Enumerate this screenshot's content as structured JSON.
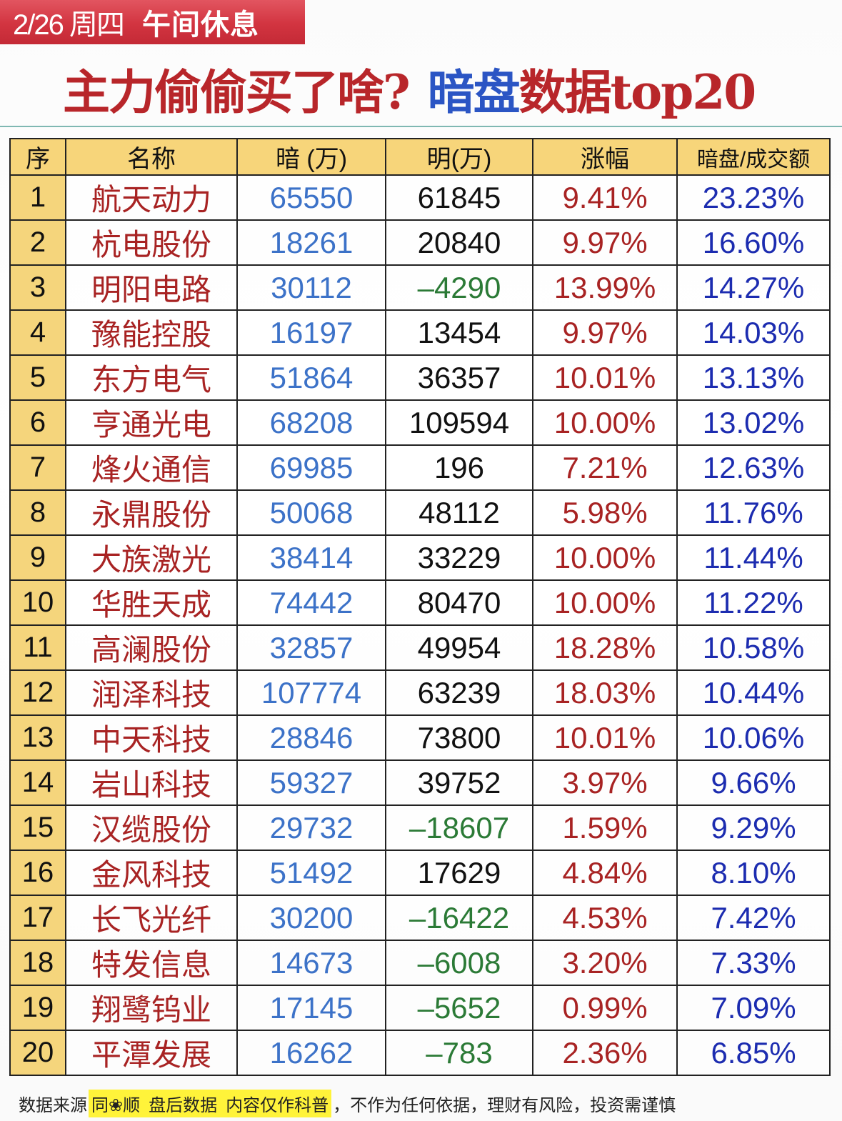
{
  "banner": {
    "date": "2/26 周四",
    "label": "午间休息",
    "color": "#d23440"
  },
  "title": {
    "part1": "主力偷偷买了啥?",
    "part2": "暗盘",
    "part3": "数据top20"
  },
  "table": {
    "headers": [
      "序",
      "名称",
      "暗 (万)",
      "明(万)",
      "涨幅",
      "暗盘/成交额"
    ],
    "rows": [
      {
        "idx": "1",
        "name": "航天动力",
        "dark": "65550",
        "lit": "61845",
        "lit_neg": false,
        "chg": "9.41%",
        "ratio": "23.23%"
      },
      {
        "idx": "2",
        "name": "杭电股份",
        "dark": "18261",
        "lit": "20840",
        "lit_neg": false,
        "chg": "9.97%",
        "ratio": "16.60%"
      },
      {
        "idx": "3",
        "name": "明阳电路",
        "dark": "30112",
        "lit": "–4290",
        "lit_neg": true,
        "chg": "13.99%",
        "ratio": "14.27%"
      },
      {
        "idx": "4",
        "name": "豫能控股",
        "dark": "16197",
        "lit": "13454",
        "lit_neg": false,
        "chg": "9.97%",
        "ratio": "14.03%"
      },
      {
        "idx": "5",
        "name": "东方电气",
        "dark": "51864",
        "lit": "36357",
        "lit_neg": false,
        "chg": "10.01%",
        "ratio": "13.13%"
      },
      {
        "idx": "6",
        "name": "亨通光电",
        "dark": "68208",
        "lit": "109594",
        "lit_neg": false,
        "chg": "10.00%",
        "ratio": "13.02%"
      },
      {
        "idx": "7",
        "name": "烽火通信",
        "dark": "69985",
        "lit": "196",
        "lit_neg": false,
        "chg": "7.21%",
        "ratio": "12.63%"
      },
      {
        "idx": "8",
        "name": "永鼎股份",
        "dark": "50068",
        "lit": "48112",
        "lit_neg": false,
        "chg": "5.98%",
        "ratio": "11.76%"
      },
      {
        "idx": "9",
        "name": "大族激光",
        "dark": "38414",
        "lit": "33229",
        "lit_neg": false,
        "chg": "10.00%",
        "ratio": "11.44%"
      },
      {
        "idx": "10",
        "name": "华胜天成",
        "dark": "74442",
        "lit": "80470",
        "lit_neg": false,
        "chg": "10.00%",
        "ratio": "11.22%"
      },
      {
        "idx": "11",
        "name": "高澜股份",
        "dark": "32857",
        "lit": "49954",
        "lit_neg": false,
        "chg": "18.28%",
        "ratio": "10.58%"
      },
      {
        "idx": "12",
        "name": "润泽科技",
        "dark": "107774",
        "lit": "63239",
        "lit_neg": false,
        "chg": "18.03%",
        "ratio": "10.44%"
      },
      {
        "idx": "13",
        "name": "中天科技",
        "dark": "28846",
        "lit": "73800",
        "lit_neg": false,
        "chg": "10.01%",
        "ratio": "10.06%"
      },
      {
        "idx": "14",
        "name": "岩山科技",
        "dark": "59327",
        "lit": "39752",
        "lit_neg": false,
        "chg": "3.97%",
        "ratio": "9.66%"
      },
      {
        "idx": "15",
        "name": "汉缆股份",
        "dark": "29732",
        "lit": "–18607",
        "lit_neg": true,
        "chg": "1.59%",
        "ratio": "9.29%"
      },
      {
        "idx": "16",
        "name": "金风科技",
        "dark": "51492",
        "lit": "17629",
        "lit_neg": false,
        "chg": "4.84%",
        "ratio": "8.10%"
      },
      {
        "idx": "17",
        "name": "长飞光纤",
        "dark": "30200",
        "lit": "–16422",
        "lit_neg": true,
        "chg": "4.53%",
        "ratio": "7.42%"
      },
      {
        "idx": "18",
        "name": "特发信息",
        "dark": "14673",
        "lit": "–6008",
        "lit_neg": true,
        "chg": "3.20%",
        "ratio": "7.33%"
      },
      {
        "idx": "19",
        "name": "翔鹭钨业",
        "dark": "17145",
        "lit": "–5652",
        "lit_neg": true,
        "chg": "0.99%",
        "ratio": "7.09%"
      },
      {
        "idx": "20",
        "name": "平潭发展",
        "dark": "16262",
        "lit": "–783",
        "lit_neg": true,
        "chg": "2.36%",
        "ratio": "6.85%"
      }
    ]
  },
  "footer": {
    "prefix": "数据来源",
    "source": "同❀顺",
    "data_type": "盘后数据",
    "notice": "内容仅作科普",
    "disclaimer": "，不作为任何依据，理财有风险，投资需谨慎"
  },
  "colors": {
    "name": "#a82323",
    "dark": "#3c72c8",
    "neg": "#2b7a36",
    "chg": "#a82323",
    "ratio": "#1c2cb0",
    "header_bg": "#f7d57a"
  }
}
